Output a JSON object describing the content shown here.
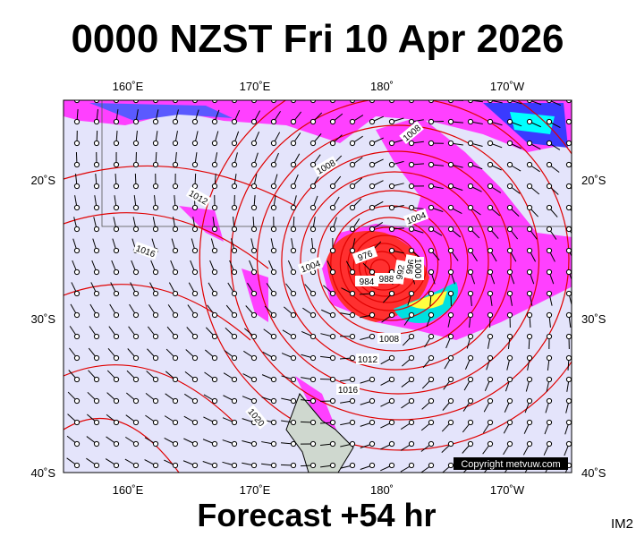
{
  "header": {
    "title": "0000 NZST Fri 10 Apr 2026"
  },
  "map": {
    "top_lon_labels": [
      "160˚E",
      "170˚E",
      "180˚",
      "170˚W"
    ],
    "bottom_lon_labels": [
      "160˚E",
      "170˚E",
      "180˚",
      "170˚W"
    ],
    "left_lat_labels": [
      "20˚S",
      "30˚S",
      "40˚S"
    ],
    "right_lat_labels": [
      "20˚S",
      "30˚S",
      "40˚S"
    ],
    "isobar_labels": [
      "1008",
      "1008",
      "1012",
      "1016",
      "1004",
      "1004",
      "976",
      "984",
      "988",
      "992",
      "996",
      "1000",
      "1008",
      "1012",
      "1016",
      "1020"
    ],
    "copyright": "Copyright metvuw.com"
  },
  "footer": {
    "forecast": "Forecast +54 hr",
    "id": "IM2"
  }
}
